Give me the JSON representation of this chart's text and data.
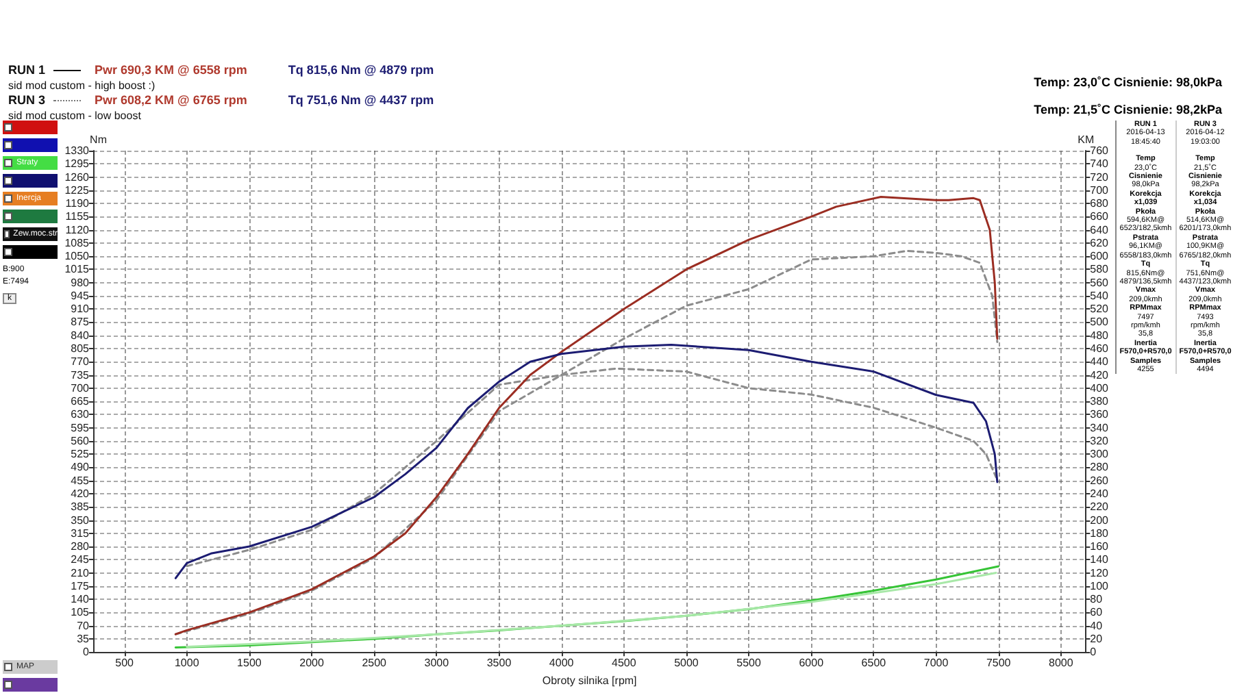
{
  "chart_data": {
    "type": "line",
    "xlabel": "Obroty silnika [rpm]",
    "ylabel": "Nm",
    "y2label": "KM",
    "xlim": [
      250,
      8200
    ],
    "xticks": [
      500,
      1000,
      1500,
      2000,
      2500,
      3000,
      3500,
      4000,
      4500,
      5000,
      5500,
      6000,
      6500,
      7000,
      7500,
      8000
    ],
    "ylim": [
      0,
      1330
    ],
    "yticks": [
      0,
      35,
      70,
      105,
      140,
      175,
      210,
      245,
      280,
      315,
      350,
      385,
      420,
      455,
      490,
      525,
      560,
      595,
      630,
      665,
      700,
      735,
      770,
      805,
      840,
      875,
      910,
      945,
      980,
      1015,
      1050,
      1085,
      1120,
      1155,
      1190,
      1225,
      1260,
      1295,
      1330
    ],
    "y2lim": [
      0,
      760
    ],
    "y2ticks": [
      0,
      20,
      40,
      60,
      80,
      100,
      120,
      140,
      160,
      180,
      200,
      220,
      240,
      260,
      280,
      300,
      320,
      340,
      360,
      380,
      400,
      420,
      440,
      460,
      480,
      500,
      520,
      540,
      560,
      580,
      600,
      620,
      640,
      660,
      680,
      700,
      720,
      740,
      760
    ],
    "grid": true,
    "marker": "none",
    "series": [
      {
        "color": "#9b2d22",
        "axis": "y2",
        "line_style": "solid",
        "x": [
          910,
          1000,
          1500,
          2000,
          2500,
          2750,
          3000,
          3250,
          3500,
          3750,
          4000,
          4500,
          5000,
          5500,
          6000,
          6200,
          6558,
          7000,
          7100,
          7300,
          7350,
          7430,
          7470,
          7490
        ],
        "values": [
          27,
          33,
          60,
          95,
          145,
          180,
          235,
          300,
          370,
          420,
          455,
          520,
          580,
          625,
          660,
          675,
          690,
          685,
          685,
          688,
          685,
          640,
          560,
          475
        ]
      },
      {
        "color": "#1c1c72",
        "axis": "y",
        "line_style": "solid",
        "x": [
          910,
          1000,
          1200,
          1500,
          2000,
          2500,
          2750,
          3000,
          3250,
          3500,
          3750,
          4000,
          4500,
          4879,
          5500,
          6000,
          6500,
          7000,
          7300,
          7400,
          7470,
          7490
        ],
        "values": [
          196,
          236,
          262,
          280,
          332,
          411,
          472,
          542,
          647,
          717,
          770,
          791,
          810,
          815,
          801,
          770,
          744,
          682,
          661,
          612,
          525,
          451
        ]
      },
      {
        "color": "#8c8c8c",
        "axis": "y2",
        "line_style": "dashed",
        "x": [
          910,
          1500,
          2000,
          2500,
          3000,
          3500,
          4000,
          4500,
          5000,
          5500,
          6000,
          6500,
          6765,
          7000,
          7200,
          7350,
          7450,
          7490
        ],
        "values": [
          27,
          58,
          93,
          143,
          230,
          365,
          420,
          475,
          525,
          550,
          595,
          600,
          608,
          605,
          600,
          590,
          540,
          470
        ]
      },
      {
        "color": "#8c8c8c",
        "axis": "y",
        "line_style": "dashed",
        "x": [
          1000,
          1500,
          2000,
          2500,
          3000,
          3500,
          4000,
          4437,
          5000,
          5500,
          6000,
          6500,
          7000,
          7300,
          7400,
          7480
        ],
        "values": [
          228,
          271,
          324,
          420,
          560,
          709,
          735,
          752,
          744,
          700,
          683,
          648,
          595,
          560,
          525,
          464
        ]
      },
      {
        "color": "#36c436",
        "axis": "y2",
        "line_style": "solid",
        "x": [
          910,
          1500,
          2000,
          2500,
          3000,
          3500,
          4000,
          4500,
          5000,
          5500,
          6000,
          6500,
          7000,
          7500
        ],
        "values": [
          7,
          10,
          15,
          20,
          27,
          33,
          40,
          47,
          55,
          65,
          78,
          93,
          110,
          130
        ]
      },
      {
        "color": "#a8e8a8",
        "axis": "y2",
        "line_style": "solid",
        "x": [
          1000,
          2000,
          3000,
          4000,
          5000,
          6000,
          7000,
          7480
        ],
        "values": [
          8,
          16,
          27,
          40,
          55,
          76,
          103,
          120
        ]
      }
    ],
    "annotations": [
      "RUN 1",
      "Pwr  690,3 KM @ 6558 rpm",
      "Tq 815,6 Nm @ 4879 rpm",
      "sid mod custom - high  boost :)",
      "RUN 3",
      "Pwr  608,2 KM @ 6765 rpm",
      "Tq 751,6 Nm @ 4437 rpm",
      "sid mod custom - low boost",
      "Temp: 23,0˚C   Cisnienie: 98,0kPa",
      "Temp: 21,5˚C   Cisnienie: 98,2kPa",
      "Straty",
      "Inercja",
      "Zew.moc.str",
      "B:900",
      "E:7494",
      "k",
      "MAP",
      "RUN 1\n2016-04-13\n18:45:40\n\nTemp\n23,0˚C\nCisnienie\n98,0kPa\nKorekcja\nx1,039\nPkoła\n594,6KM@\n6523/182,5kmh\nPstrata\n96,1KM@\n6558/183,0kmh\nTq\n815,6Nm@\n4879/136,5kmh\nVmax\n209,0kmh\nRPMmax\n7497\nrpm/kmh\n35,8\nInertia\nF570,0+R570,0\nSamples\n4255",
      "RUN 3\n2016-04-12\n19:03:00\n\nTemp\n21,5˚C\nCisnienie\n98,2kPa\nKorekcja\nx1,034\nPkoła\n514,6KM@\n6201/173,0kmh\nPstrata\n100,9KM@\n6765/182,0kmh\nTq\n751,6Nm@\n4437/123,0kmh\nVmax\n209,0kmh\nRPMmax\n7493\nrpm/kmh\n35,8\nInertia\nF570,0+R570,0\nSamples\n4494"
    ]
  }
}
